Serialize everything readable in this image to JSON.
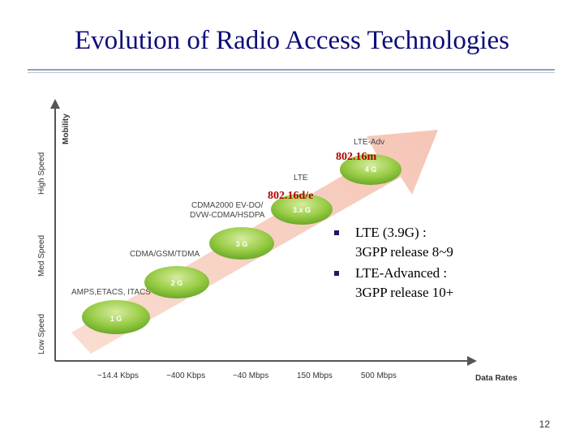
{
  "slide": {
    "title": "Evolution of Radio Access Technologies",
    "page_number": "12"
  },
  "diagram": {
    "y_axis_title": "Mobility",
    "x_axis_title": "Data Rates",
    "y_bands": [
      "Low Speed",
      "Med Speed",
      "High Speed"
    ],
    "x_ticks": [
      "~14.4 Kbps",
      "~400 Kbps",
      "~40 Mbps",
      "150 Mbps",
      "500 Mbps"
    ],
    "generations": [
      {
        "badge": "1 G",
        "label": "AMPS,ETACS, ITACS"
      },
      {
        "badge": "2 G",
        "label": "CDMA/GSM/TDMA"
      },
      {
        "badge": "3 G",
        "label": "CDMA2000 EV-DO/\nDVW-CDMA/HSDPA"
      },
      {
        "badge": "3.x G",
        "label": "LTE"
      },
      {
        "badge": "4 G",
        "label": "LTE-Adv"
      }
    ],
    "annotations": [
      "802.16d/e",
      "802.16m"
    ],
    "colors": {
      "arrow": "#f6c8b8",
      "bubble": "#8cc63f",
      "red_text": "#b00000"
    }
  },
  "bullets": [
    {
      "line1": "LTE (3.9G) :",
      "line2": "3GPP release 8~9"
    },
    {
      "line1": "LTE-Advanced :",
      "line2": "3GPP release 10+"
    }
  ]
}
